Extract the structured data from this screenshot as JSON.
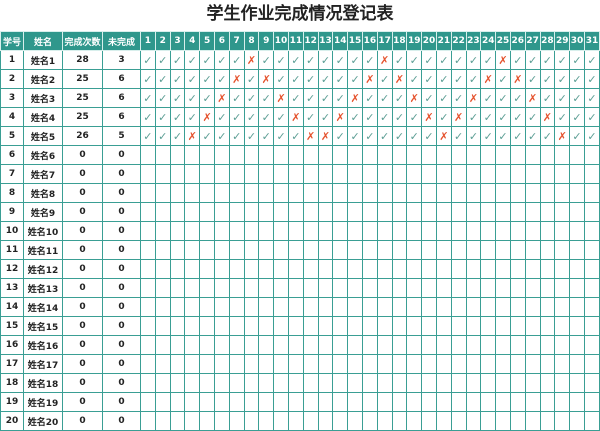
{
  "title": "学生作业完成情况登记表",
  "headers": [
    "学号",
    "姓名",
    "完成次数",
    "未完成"
  ],
  "days": [
    "1",
    "2",
    "3",
    "4",
    "5",
    "6",
    "7",
    "8",
    "9",
    "10",
    "11",
    "12",
    "13",
    "14",
    "15",
    "16",
    "17",
    "18",
    "19",
    "20",
    "21",
    "22",
    "23",
    "24",
    "25",
    "26",
    "27",
    "28",
    "29",
    "30",
    "31"
  ],
  "marks": {
    "done": "✓",
    "missed": "✗"
  },
  "colors": {
    "header": "#2f978c",
    "check": "#5c9e94",
    "cross": "#e5532e",
    "grid": "#3a9e94"
  },
  "students": [
    {
      "id": "1",
      "name": "姓名1",
      "done": "28",
      "missed": "3",
      "missed_days": [
        8,
        17,
        25
      ]
    },
    {
      "id": "2",
      "name": "姓名2",
      "done": "25",
      "missed": "6",
      "missed_days": [
        7,
        9,
        16,
        18,
        24,
        26
      ]
    },
    {
      "id": "3",
      "name": "姓名3",
      "done": "25",
      "missed": "6",
      "missed_days": [
        6,
        10,
        15,
        19,
        23,
        27
      ]
    },
    {
      "id": "4",
      "name": "姓名4",
      "done": "25",
      "missed": "6",
      "missed_days": [
        5,
        11,
        14,
        20,
        22,
        28
      ]
    },
    {
      "id": "5",
      "name": "姓名5",
      "done": "26",
      "missed": "5",
      "missed_days": [
        4,
        12,
        13,
        21,
        29
      ]
    },
    {
      "id": "6",
      "name": "姓名6",
      "done": "0",
      "missed": "0"
    },
    {
      "id": "7",
      "name": "姓名7",
      "done": "0",
      "missed": "0"
    },
    {
      "id": "8",
      "name": "姓名8",
      "done": "0",
      "missed": "0"
    },
    {
      "id": "9",
      "name": "姓名9",
      "done": "0",
      "missed": "0"
    },
    {
      "id": "10",
      "name": "姓名10",
      "done": "0",
      "missed": "0"
    },
    {
      "id": "11",
      "name": "姓名11",
      "done": "0",
      "missed": "0"
    },
    {
      "id": "12",
      "name": "姓名12",
      "done": "0",
      "missed": "0"
    },
    {
      "id": "13",
      "name": "姓名13",
      "done": "0",
      "missed": "0"
    },
    {
      "id": "14",
      "name": "姓名14",
      "done": "0",
      "missed": "0"
    },
    {
      "id": "15",
      "name": "姓名15",
      "done": "0",
      "missed": "0"
    },
    {
      "id": "16",
      "name": "姓名16",
      "done": "0",
      "missed": "0"
    },
    {
      "id": "17",
      "name": "姓名17",
      "done": "0",
      "missed": "0"
    },
    {
      "id": "18",
      "name": "姓名18",
      "done": "0",
      "missed": "0"
    },
    {
      "id": "19",
      "name": "姓名19",
      "done": "0",
      "missed": "0"
    },
    {
      "id": "20",
      "name": "姓名20",
      "done": "0",
      "missed": "0"
    }
  ]
}
